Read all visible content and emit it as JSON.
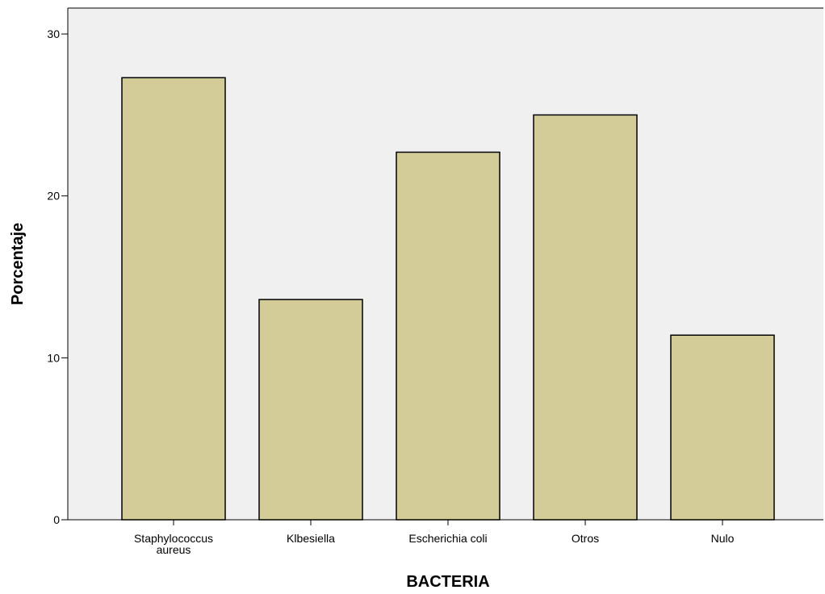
{
  "chart_data": {
    "type": "bar",
    "categories": [
      "Staphylococcus aureus",
      "Klbesiella",
      "Escherichia coli",
      "Otros",
      "Nulo"
    ],
    "category_lines": [
      [
        "Staphylococcus",
        "aureus"
      ],
      [
        "Klbesiella"
      ],
      [
        "Escherichia coli"
      ],
      [
        "Otros"
      ],
      [
        "Nulo"
      ]
    ],
    "values": [
      27.3,
      13.6,
      22.7,
      25.0,
      11.4
    ],
    "xlabel": "BACTERIA",
    "ylabel": "Porcentaje",
    "ylim": [
      0,
      31.6
    ],
    "yticks": [
      0,
      10,
      20,
      30
    ],
    "grid": false,
    "colors": {
      "bar": "#d3cc98",
      "bar_stroke": "#000000",
      "plot_bg": "#f0f0f0"
    }
  }
}
